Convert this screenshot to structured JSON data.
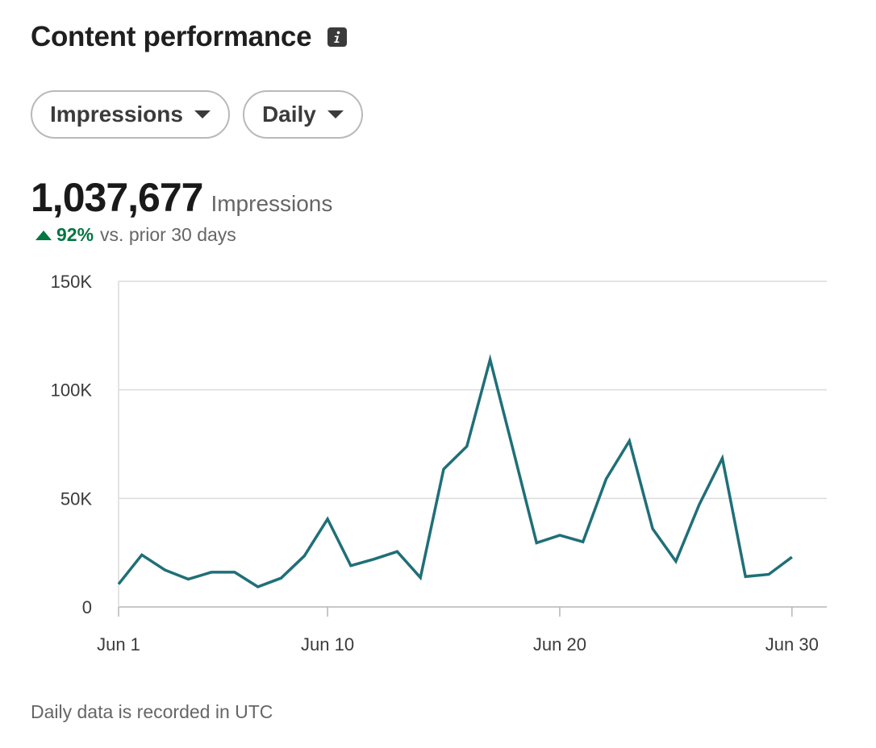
{
  "header": {
    "title": "Content performance",
    "info_icon": "info-icon"
  },
  "filters": {
    "metric_label": "Impressions",
    "period_label": "Daily"
  },
  "summary": {
    "total": "1,037,677",
    "unit": "Impressions",
    "change_pct": "92%",
    "change_text": "vs. prior 30 days",
    "change_direction_icon": "triangle-up-icon"
  },
  "footer": {
    "note": "Daily data is recorded in UTC"
  },
  "colors": {
    "line": "#1f6f78",
    "positive": "#057642",
    "grid": "#dcdcdc"
  },
  "chart_data": {
    "type": "line",
    "title": "",
    "xlabel": "",
    "ylabel": "",
    "x": [
      1,
      2,
      3,
      4,
      5,
      6,
      7,
      8,
      9,
      10,
      11,
      12,
      13,
      14,
      15,
      16,
      17,
      18,
      19,
      20,
      21,
      22,
      23,
      24,
      25,
      26,
      27,
      28,
      29,
      30
    ],
    "series": [
      {
        "values": [
          10500,
          24000,
          17000,
          12800,
          16000,
          16000,
          9300,
          13300,
          23500,
          40500,
          19000,
          22000,
          25500,
          13500,
          63500,
          74000,
          114000,
          72000,
          29500,
          33000,
          30000,
          59000,
          76500,
          36000,
          21000,
          47000,
          68500,
          14000,
          15000,
          23000
        ]
      }
    ],
    "ylim": [
      0,
      150000
    ],
    "yticks": [
      0,
      50000,
      100000,
      150000
    ],
    "ytick_labels": [
      "0",
      "50K",
      "100K",
      "150K"
    ],
    "xticks": [
      1,
      10,
      20,
      30
    ],
    "xtick_labels": [
      "Jun 1",
      "Jun 10",
      "Jun 20",
      "Jun 30"
    ],
    "xlim": [
      1,
      31.5
    ],
    "grid": true,
    "legend": "none"
  }
}
